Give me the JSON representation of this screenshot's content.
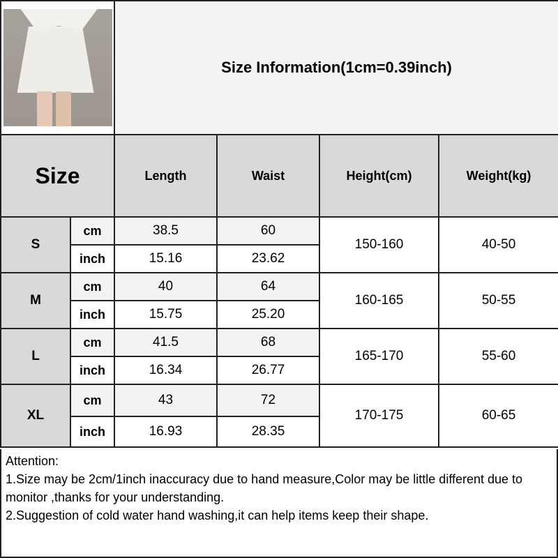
{
  "title": "Size Information(1cm=0.39inch)",
  "headers": {
    "size": "Size",
    "length": "Length",
    "waist": "Waist",
    "height": "Height(cm)",
    "weight": "Weight(kg)"
  },
  "rows": [
    {
      "size": "S",
      "cm_label": "cm",
      "inch_label": "inch",
      "length_cm": "38.5",
      "waist_cm": "60",
      "length_inch": "15.16",
      "waist_inch": "23.62",
      "height": "150-160",
      "weight": "40-50"
    },
    {
      "size": "M",
      "cm_label": "cm",
      "inch_label": "inch",
      "length_cm": "40",
      "waist_cm": "64",
      "length_inch": "15.75",
      "waist_inch": "25.20",
      "height": "160-165",
      "weight": "50-55"
    },
    {
      "size": "L",
      "cm_label": "cm",
      "inch_label": "inch",
      "length_cm": "41.5",
      "waist_cm": "68",
      "length_inch": "16.34",
      "waist_inch": "26.77",
      "height": "165-170",
      "weight": "55-60"
    },
    {
      "size": "XL",
      "cm_label": "cm",
      "inch_label": "inch",
      "length_cm": "43",
      "waist_cm": "72",
      "length_inch": "16.93",
      "waist_inch": "28.35",
      "height": "170-175",
      "weight": "60-65"
    }
  ],
  "attention": {
    "heading": "Attention:",
    "note1": "1.Size may be 2cm/1inch inaccuracy due to hand measure,Color may be little different due to monitor ,thanks for your understanding.",
    "note2": "2.Suggestion of cold water hand washing,it can help items keep their shape."
  },
  "colors": {
    "header_bg": "#d9d9d9",
    "cm_row_bg": "#f2f2f2",
    "inch_row_bg": "#ffffff",
    "border": "#222222"
  }
}
